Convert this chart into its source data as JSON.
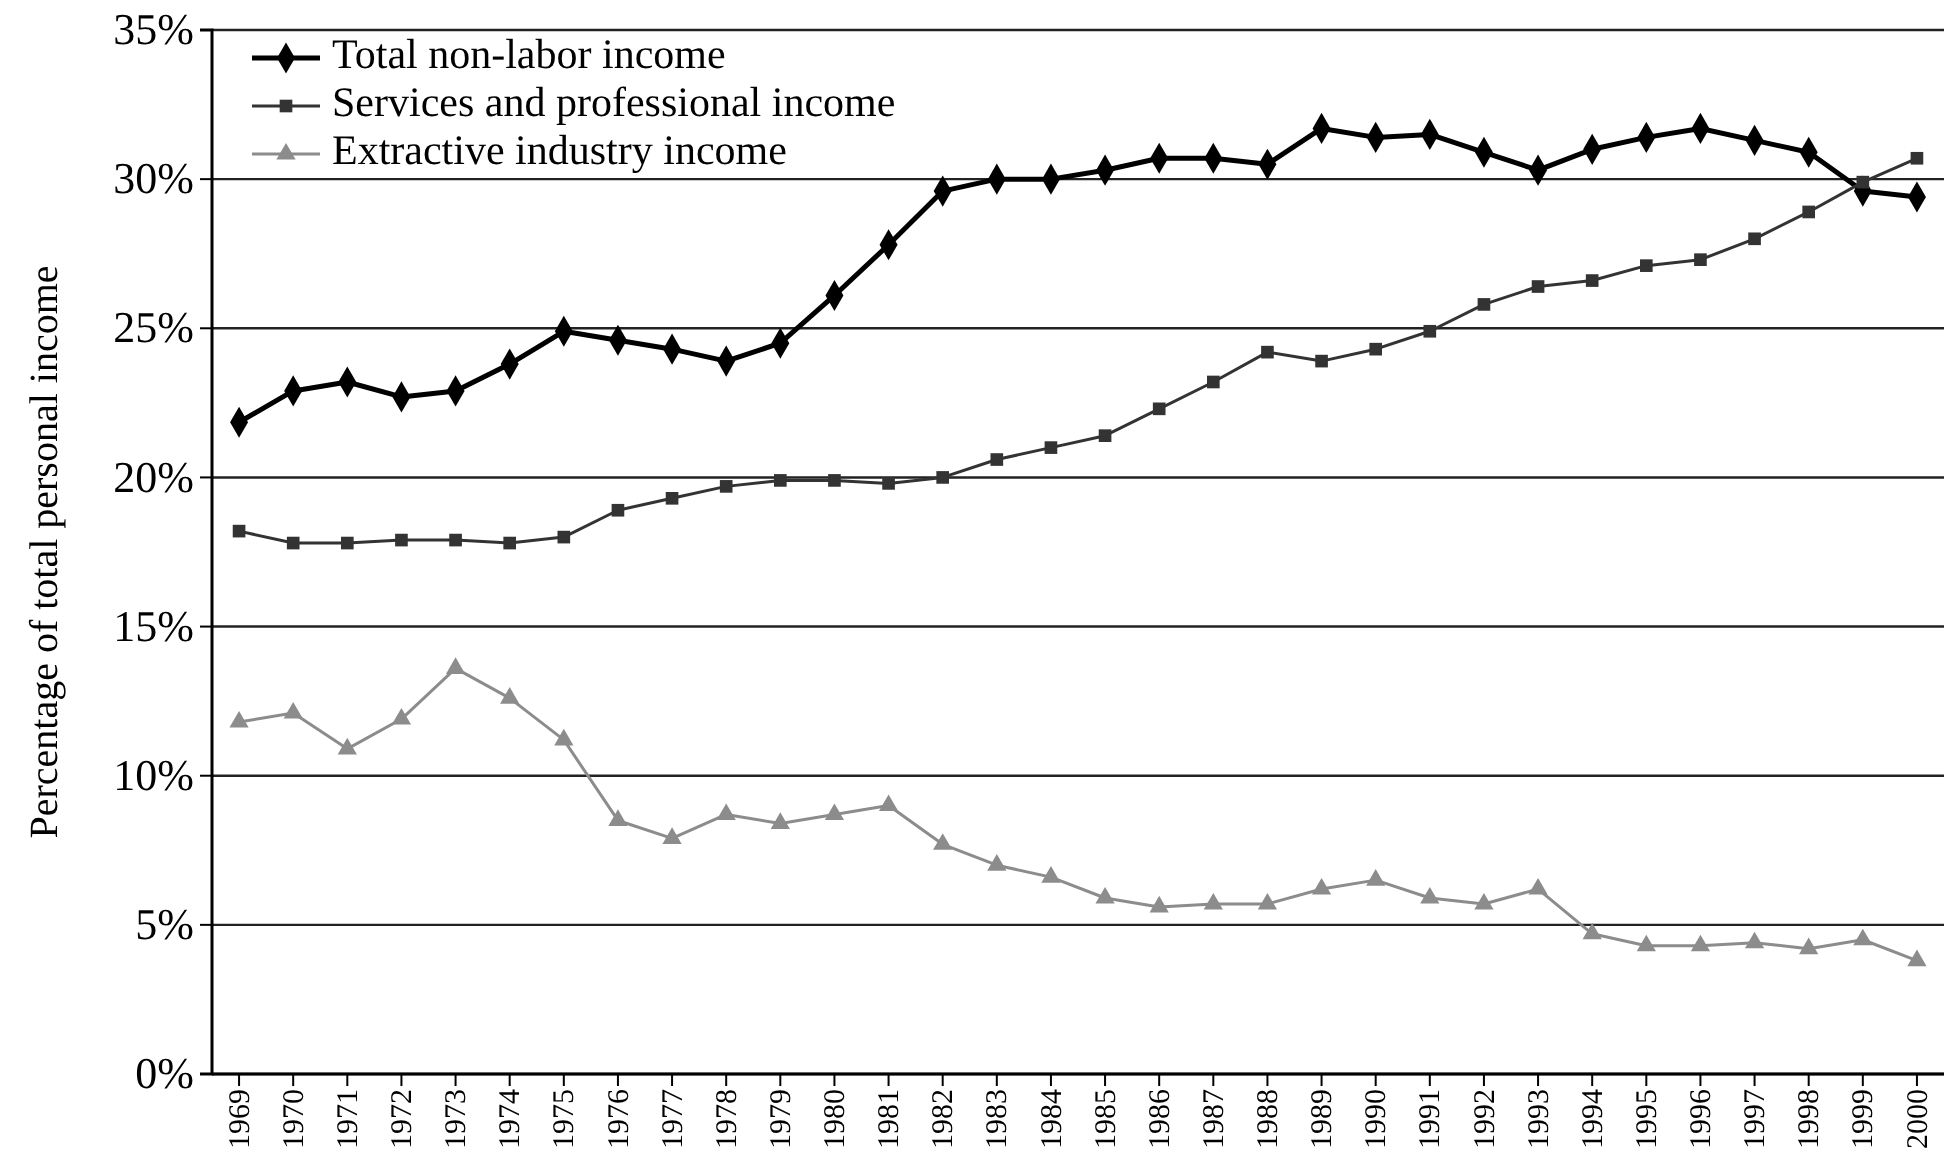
{
  "chart_data": {
    "type": "line",
    "ylabel": "Percentage of total personal income",
    "categories": [
      "1969",
      "1970",
      "1971",
      "1972",
      "1973",
      "1974",
      "1975",
      "1976",
      "1977",
      "1978",
      "1979",
      "1980",
      "1981",
      "1982",
      "1983",
      "1984",
      "1985",
      "1986",
      "1987",
      "1988",
      "1989",
      "1990",
      "1991",
      "1992",
      "1993",
      "1994",
      "1995",
      "1996",
      "1997",
      "1998",
      "1999",
      "2000"
    ],
    "series": [
      {
        "name": "Total non-labor income",
        "color": "#000000",
        "marker": "diamond",
        "values": [
          21.85,
          22.9,
          23.2,
          22.7,
          22.9,
          23.8,
          24.9,
          24.6,
          24.3,
          23.9,
          24.5,
          26.1,
          27.8,
          29.6,
          30.0,
          30.0,
          30.3,
          30.7,
          30.7,
          30.5,
          31.7,
          31.4,
          31.5,
          30.9,
          30.3,
          31.0,
          31.4,
          31.7,
          31.3,
          30.9,
          29.6,
          29.4
        ]
      },
      {
        "name": "Services and professional income",
        "color": "#333333",
        "marker": "square",
        "values": [
          18.2,
          17.8,
          17.8,
          17.9,
          17.9,
          17.8,
          18.0,
          18.9,
          19.3,
          19.7,
          19.9,
          19.9,
          19.8,
          20.0,
          20.6,
          21.0,
          21.4,
          22.3,
          23.2,
          24.2,
          23.9,
          24.3,
          24.9,
          25.8,
          26.4,
          26.6,
          27.1,
          27.3,
          28.0,
          28.9,
          29.9,
          30.7
        ]
      },
      {
        "name": "Extractive industry income",
        "color": "#8c8c8c",
        "marker": "triangle",
        "values": [
          11.8,
          12.1,
          10.9,
          11.9,
          13.6,
          12.6,
          11.2,
          8.5,
          7.9,
          8.7,
          8.4,
          8.7,
          9.0,
          7.7,
          7.0,
          6.6,
          5.9,
          5.6,
          5.7,
          5.7,
          6.2,
          6.5,
          5.9,
          5.7,
          6.2,
          4.7,
          4.3,
          4.3,
          4.4,
          4.2,
          4.5,
          3.8
        ]
      }
    ],
    "ylim": [
      0,
      35
    ],
    "yticks": [
      {
        "value": 0,
        "label": "0%"
      },
      {
        "value": 5,
        "label": "5%"
      },
      {
        "value": 10,
        "label": "10%"
      },
      {
        "value": 15,
        "label": "15%"
      },
      {
        "value": 20,
        "label": "20%"
      },
      {
        "value": 25,
        "label": "25%"
      },
      {
        "value": 30,
        "label": "30%"
      },
      {
        "value": 35,
        "label": "35%"
      }
    ],
    "grid": "y",
    "legend": "top left",
    "line_style": "solid"
  }
}
